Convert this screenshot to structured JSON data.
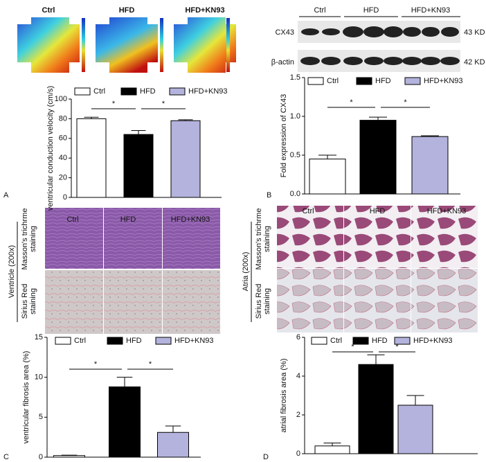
{
  "panel_labels": [
    "A",
    "B",
    "C",
    "D"
  ],
  "conduction_maps": {
    "labels": [
      "Ctrl",
      "HFD",
      "HFD+KN93"
    ]
  },
  "western_blot": {
    "lanes": [
      "Ctrl",
      "HFD",
      "HFD+KN93"
    ],
    "rows": [
      {
        "protein": "CX43",
        "size": "43 KD"
      },
      {
        "protein": "β-actin",
        "size": "42 KD"
      }
    ]
  },
  "ventricle_histology": {
    "columns": [
      "Ctrl",
      "HFD",
      "HFD+KN93"
    ],
    "group_label": "Ventricle (200x)",
    "rows": [
      [
        "Masson's trichrme",
        "staining"
      ],
      [
        "Sirius Red",
        "staining"
      ]
    ]
  },
  "atria_histology": {
    "columns": [
      "Ctrl",
      "HFD",
      "HFD+KN93"
    ],
    "group_label": "Atria (200x)",
    "rows": [
      [
        "Masson's trichrme",
        "staining"
      ],
      [
        "Sirius Red",
        "staining"
      ]
    ]
  },
  "chart_data": [
    {
      "type": "bar",
      "ylabel": "ventricular conduction velocity (cm/s)",
      "ylim": [
        0,
        100
      ],
      "yticks": [
        0,
        20,
        40,
        60,
        80,
        100
      ],
      "series": [
        {
          "name": "Ctrl",
          "color": "#ffffff",
          "values": [
            80
          ],
          "errors": [
            1.5
          ]
        },
        {
          "name": "HFD",
          "color": "#000000",
          "values": [
            64
          ],
          "errors": [
            4
          ]
        },
        {
          "name": "HFD+KN93",
          "color": "#b3b3dd",
          "values": [
            78
          ],
          "errors": [
            1
          ]
        }
      ],
      "annotations": [
        "*",
        "*"
      ]
    },
    {
      "type": "bar",
      "ylabel": "Fold expression of CX43",
      "ylim": [
        0,
        1.5
      ],
      "yticks": [
        {
          "value": 0,
          "label": "0.0"
        },
        {
          "value": 0.5,
          "label": "0.5"
        },
        {
          "value": 1,
          "label": "1.0"
        },
        {
          "value": 1.5,
          "label": "1.5"
        }
      ],
      "series": [
        {
          "name": "Ctrl",
          "color": "#ffffff",
          "values": [
            0.45
          ],
          "errors": [
            0.05
          ]
        },
        {
          "name": "HFD",
          "color": "#000000",
          "values": [
            0.95
          ],
          "errors": [
            0.04
          ]
        },
        {
          "name": "HFD+KN93",
          "color": "#b3b3dd",
          "values": [
            0.74
          ],
          "errors": [
            0.01
          ]
        }
      ],
      "annotations": [
        "*",
        "*"
      ]
    },
    {
      "type": "bar",
      "ylabel": "ventricular fibrosis area (%)",
      "ylim": [
        0,
        15
      ],
      "yticks": [
        0,
        5,
        10,
        15
      ],
      "series": [
        {
          "name": "Ctrl",
          "color": "#ffffff",
          "values": [
            0.2
          ],
          "errors": [
            0.05
          ]
        },
        {
          "name": "HFD",
          "color": "#000000",
          "values": [
            8.8
          ],
          "errors": [
            1.2
          ]
        },
        {
          "name": "HFD+KN93",
          "color": "#b3b3dd",
          "values": [
            3.1
          ],
          "errors": [
            0.8
          ]
        }
      ],
      "annotations": [
        "*",
        "*"
      ]
    },
    {
      "type": "bar",
      "ylabel": "atrial fibrosis area (%)",
      "ylim": [
        0,
        6
      ],
      "yticks": [
        0,
        2,
        4,
        6
      ],
      "series": [
        {
          "name": "Ctrl",
          "color": "#ffffff",
          "values": [
            0.4
          ],
          "errors": [
            0.15
          ]
        },
        {
          "name": "HFD",
          "color": "#000000",
          "values": [
            4.6
          ],
          "errors": [
            0.5
          ]
        },
        {
          "name": "HFD+KN93",
          "color": "#b3b3dd",
          "values": [
            2.5
          ],
          "errors": [
            0.5
          ]
        }
      ],
      "annotations": [
        "*",
        "*"
      ]
    }
  ]
}
